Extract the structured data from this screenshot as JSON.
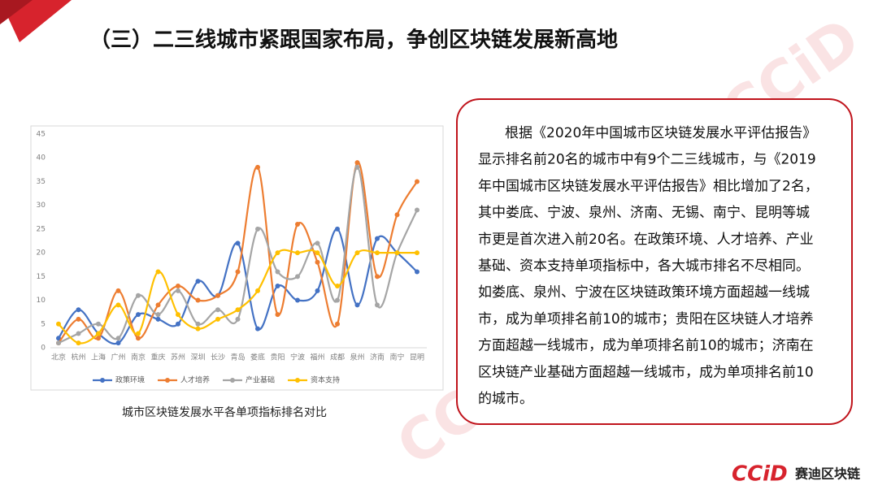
{
  "slide_title": "（三）二三线城市紧跟国家布局，争创区块链发展新高地",
  "caption": "城市区块链发展水平各单项指标排名对比",
  "paragraph": [
    "根据《2020年中国城市区块链发展水平评估报告》",
    "显示排名前20名的城市中有9个二三线城市，与《2019",
    "年中国城市区块链发展水平评估报告》相比增加了2名，",
    "其中娄底、宁波、泉州、济南、无锡、南宁、昆明等城",
    "市更是首次进入前20名。在政策环境、人才培养、产业",
    "基础、资本支持单项指标中，各大城市排名不尽相同。",
    "如娄底、泉州、宁波在区块链政策环境方面超越一线城",
    "市，成为单项排名前10的城市；贵阳在区块链人才培养",
    "方面超越一线城市，成为单项排名前10的城市；济南在",
    "区块链产业基础方面超越一线城市，成为单项排名前10",
    "的城市。"
  ],
  "logo": {
    "mark": "CCiD",
    "name": "赛迪区块链"
  },
  "chart_data": {
    "type": "line",
    "categories": [
      "北京",
      "杭州",
      "上海",
      "广州",
      "南京",
      "重庆",
      "苏州",
      "深圳",
      "长沙",
      "青岛",
      "娄底",
      "贵阳",
      "宁波",
      "福州",
      "成都",
      "泉州",
      "济南",
      "南宁",
      "昆明"
    ],
    "series": [
      {
        "name": "政策环境",
        "color": "#4472c4",
        "values": [
          2,
          8,
          3,
          1,
          7,
          6,
          5,
          14,
          11,
          22,
          4,
          13,
          10,
          12,
          25,
          9,
          23,
          20,
          16
        ]
      },
      {
        "name": "人才培养",
        "color": "#ed7d31",
        "values": [
          1,
          6,
          2,
          12,
          2,
          9,
          13,
          10,
          11,
          16,
          38,
          7,
          26,
          18,
          5,
          39,
          15,
          28,
          35
        ]
      },
      {
        "name": "产业基础",
        "color": "#a5a5a5",
        "values": [
          1,
          3,
          5,
          2,
          11,
          7,
          12,
          5,
          8,
          6,
          25,
          16,
          15,
          22,
          10,
          38,
          9,
          20,
          29
        ]
      },
      {
        "name": "资本支持",
        "color": "#ffc000",
        "values": [
          5,
          1,
          3,
          9,
          3,
          16,
          7,
          4,
          6,
          8,
          12,
          20,
          20,
          20,
          13,
          20,
          20,
          20,
          20
        ]
      }
    ],
    "ylim": [
      0,
      45
    ],
    "yticks": [
      0,
      5,
      10,
      15,
      20,
      25,
      30,
      35,
      40,
      45
    ],
    "grid": false,
    "legend": "bottom"
  }
}
